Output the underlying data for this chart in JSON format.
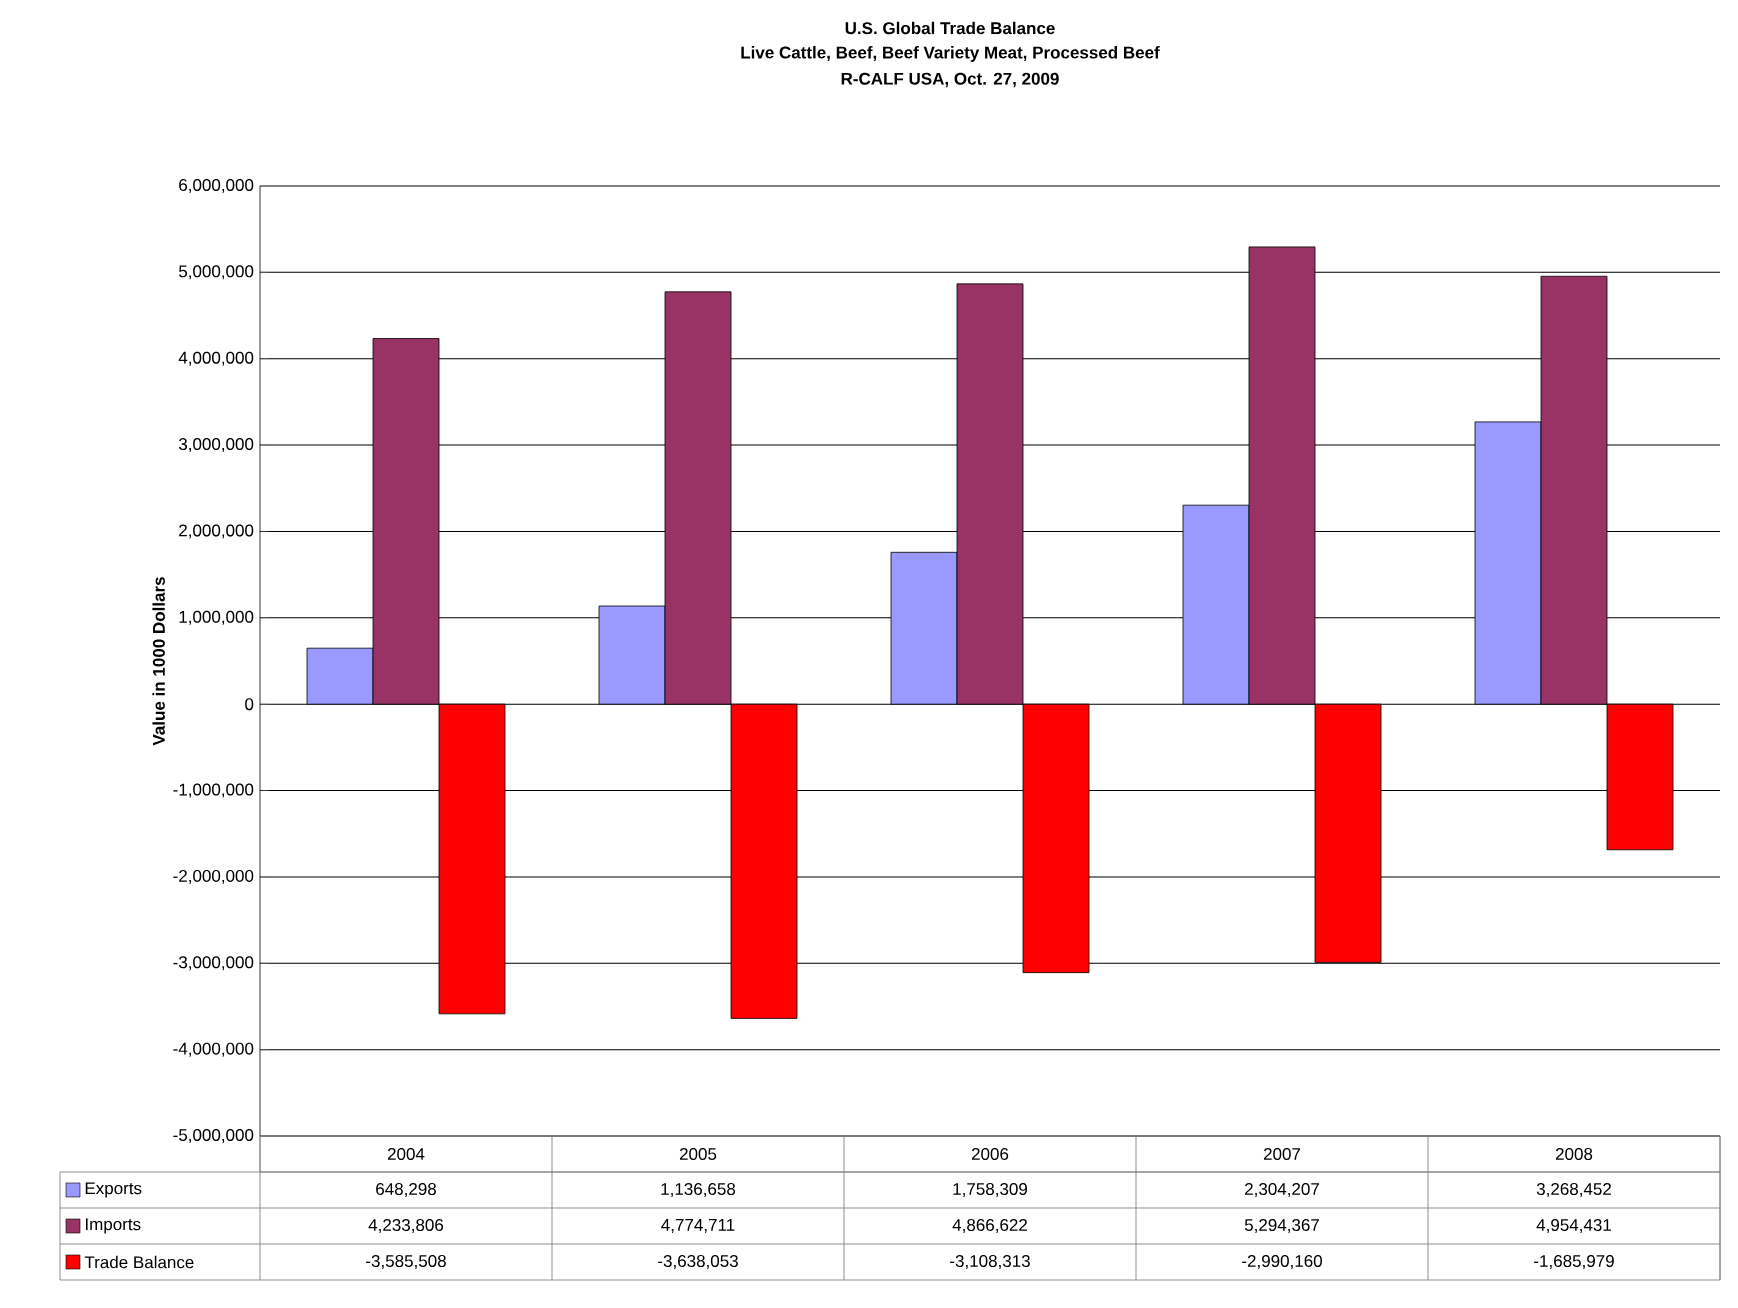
{
  "chart_data": {
    "type": "bar",
    "title": "U.S. Global Trade Balance",
    "subtitle": "Live Cattle, Beef, Beef Variety Meat, Processed Beef",
    "annotations": [
      "R-CALF USA, Oct. 27, 2009"
    ],
    "ylabel": "Value in 1000 Dollars",
    "categories": [
      "2004",
      "2005",
      "2006",
      "2007",
      "2008"
    ],
    "series": [
      {
        "name": "Exports",
        "color": "#9999ff",
        "values": [
          648298,
          1136658,
          1758309,
          2304207,
          3268452
        ],
        "value_labels": [
          "648,298",
          "1,136,658",
          "1,758,309",
          "2,304,207",
          "3,268,452"
        ]
      },
      {
        "name": "Imports",
        "color": "#993366",
        "values": [
          4233806,
          4774711,
          4866622,
          5294367,
          4954431
        ],
        "value_labels": [
          "4,233,806",
          "4,774,711",
          "4,866,622",
          "5,294,367",
          "4,954,431"
        ]
      },
      {
        "name": "Trade Balance",
        "color": "#ff0000",
        "values": [
          -3585508,
          -3638053,
          -3108313,
          -2990160,
          -1685979
        ],
        "value_labels": [
          "-3,585,508",
          "-3,638,053",
          "-3,108,313",
          "-2,990,160",
          "-1,685,979"
        ]
      }
    ],
    "ylim": [
      -5000000,
      6000000
    ],
    "yticks": [
      {
        "value": -5000000,
        "label": "-5,000,000"
      },
      {
        "value": -4000000,
        "label": "-4,000,000"
      },
      {
        "value": -3000000,
        "label": "-3,000,000"
      },
      {
        "value": -2000000,
        "label": "-2,000,000"
      },
      {
        "value": -1000000,
        "label": "-1,000,000"
      },
      0,
      {
        "value": 1000000,
        "label": "1,000,000"
      },
      {
        "value": 2000000,
        "label": "2,000,000"
      },
      {
        "value": 3000000,
        "label": "3,000,000"
      },
      {
        "value": 4000000,
        "label": "4,000,000"
      },
      {
        "value": 5000000,
        "label": "5,000,000"
      },
      {
        "value": 6000000,
        "label": "6,000,000"
      }
    ],
    "grid": "y",
    "legend": "bottom left"
  }
}
